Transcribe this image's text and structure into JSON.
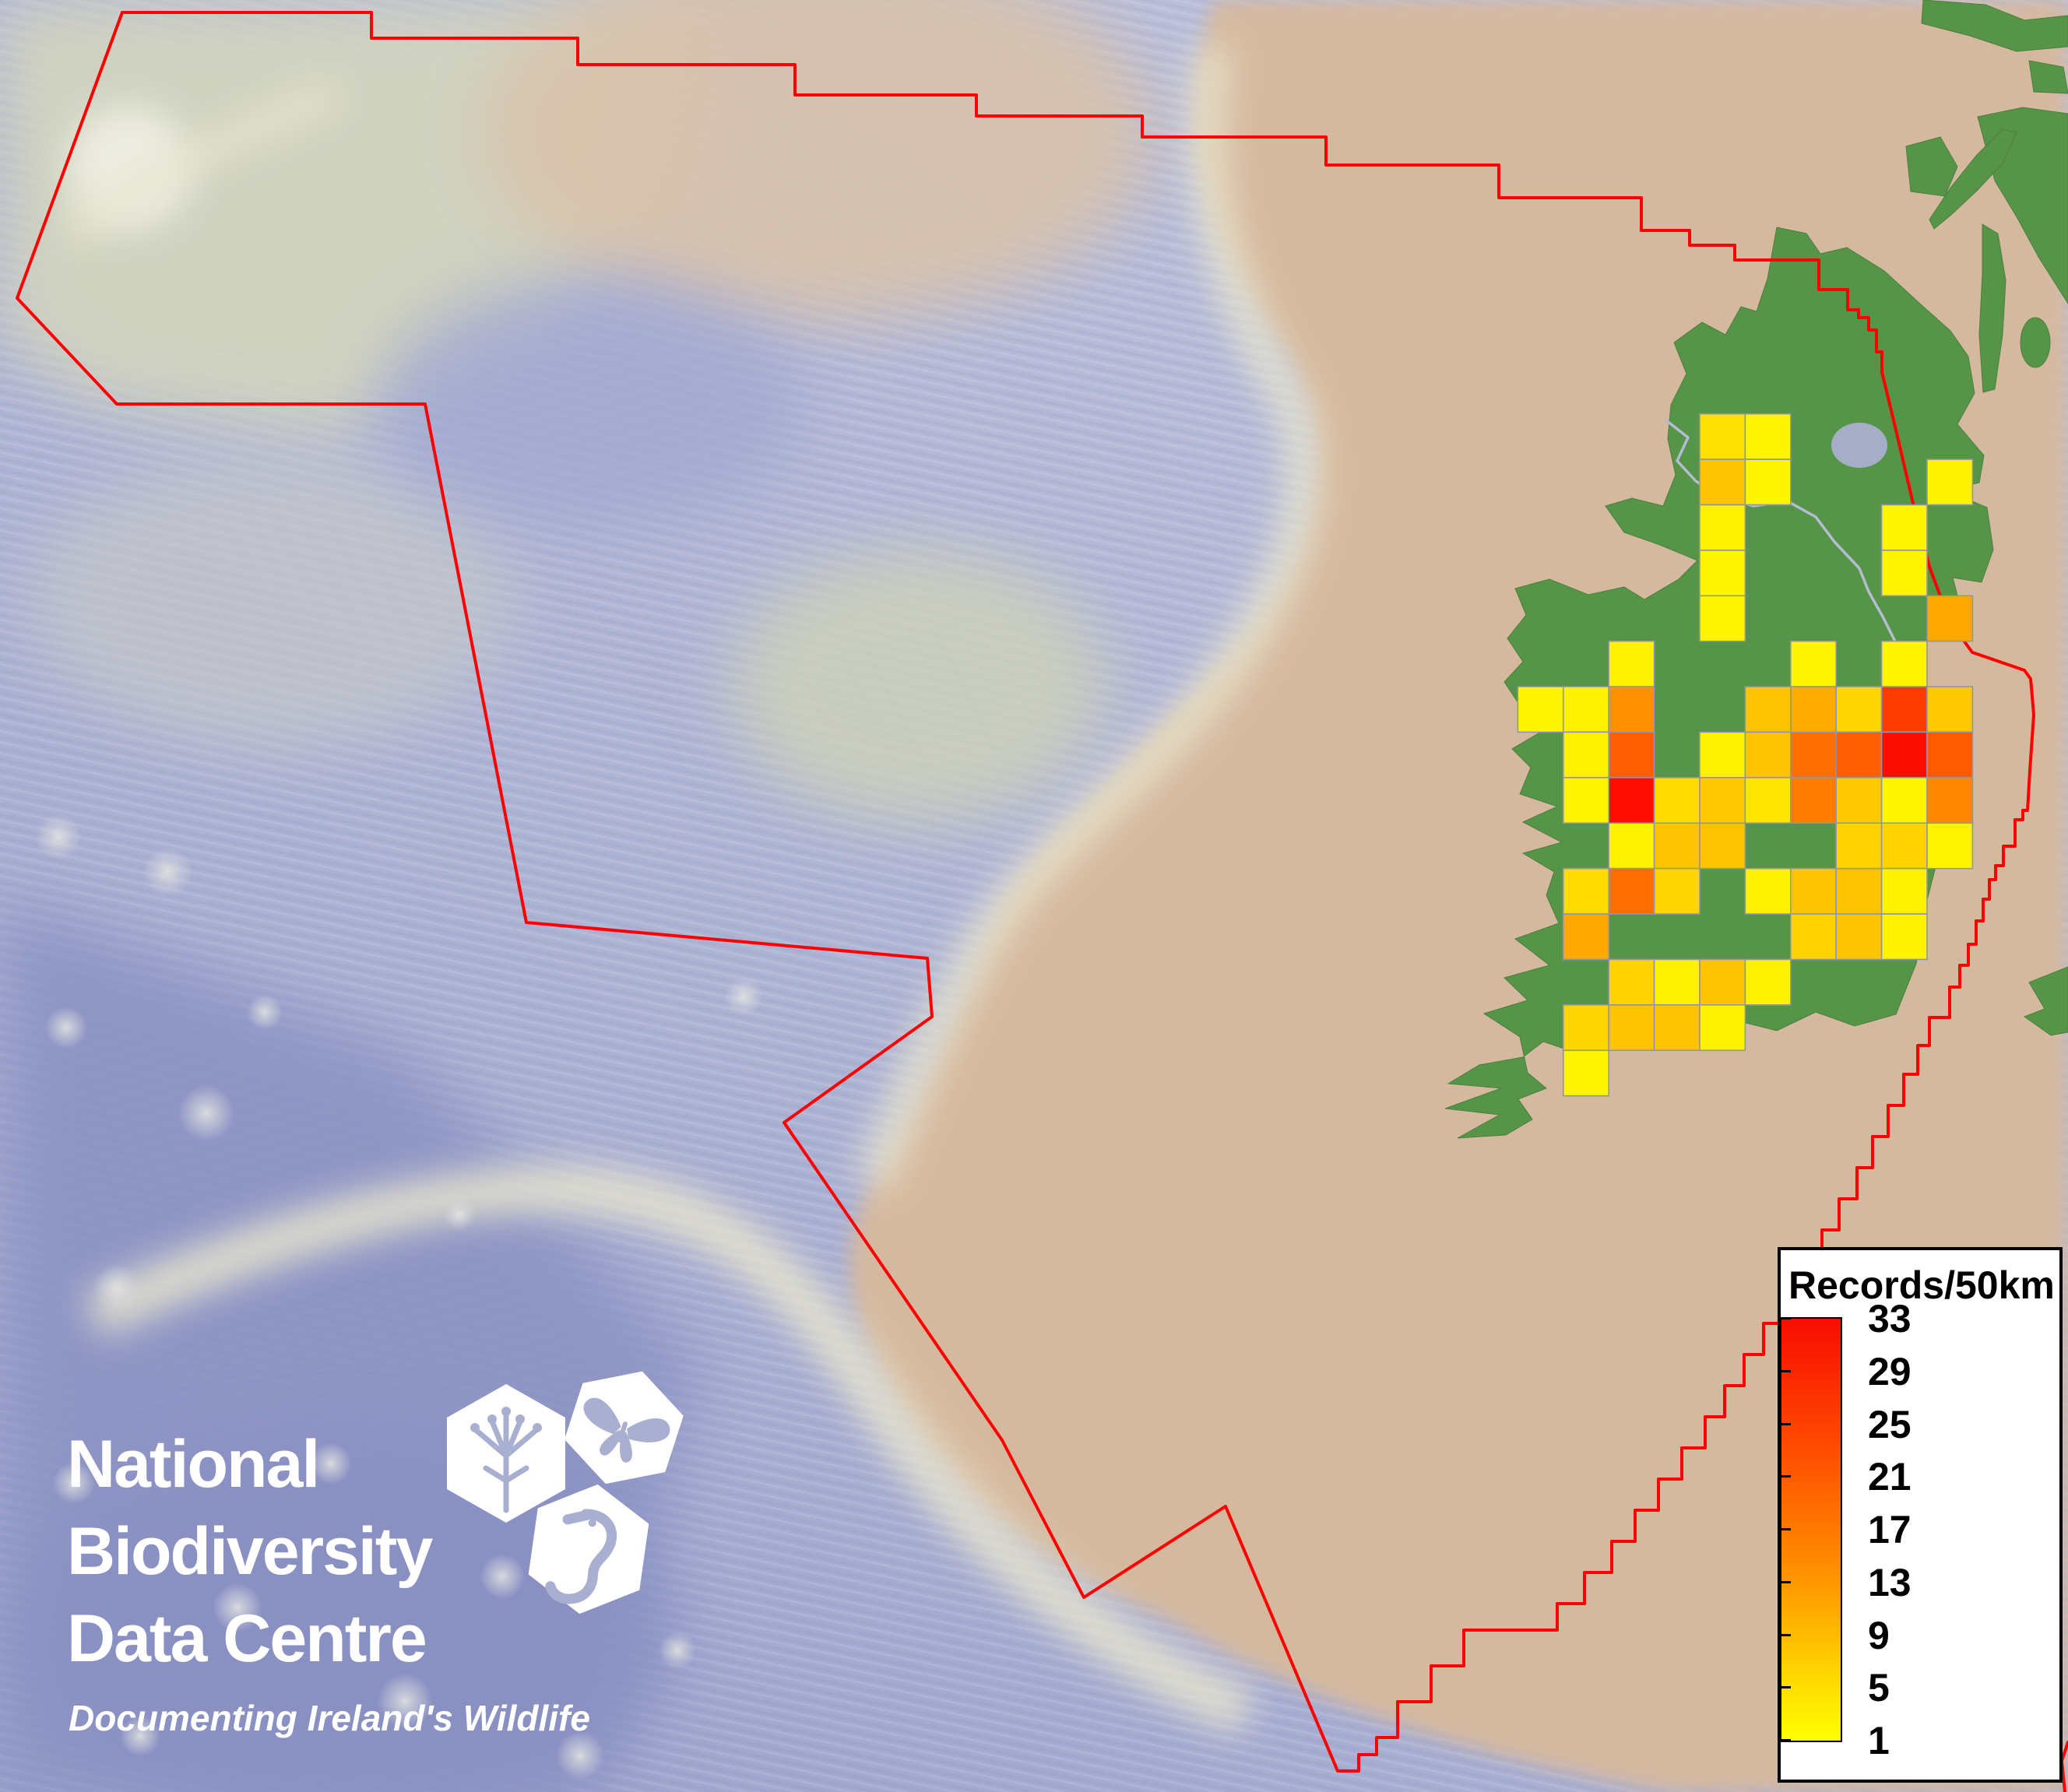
{
  "palette": {
    "boundary_red": "#ff0000",
    "grid_border": "#9195a9",
    "land_green": "#569447",
    "land_stroke": "#4a8040",
    "shelf_tan": "#d5b99f",
    "ocean_blue": "#aeb3d4",
    "deep_blue": "#8d94c4",
    "ni_border_grey": "#b4bcd2",
    "lake_grey": "#a5aec6",
    "legend_bg": "#ffffff",
    "logo_white": "#ffffff"
  },
  "legend": {
    "title": "Records/50km",
    "tick_labels": [
      "33",
      "29",
      "25",
      "21",
      "17",
      "13",
      "9",
      "5",
      "1"
    ],
    "min_value": 1,
    "max_value": 33,
    "gradient_top_to_bottom": [
      "#f80c00",
      "#ff4a00",
      "#ff9000",
      "#ffd800",
      "#ffff00"
    ]
  },
  "logo": {
    "line1": "National",
    "line2": "Biodiversity",
    "line3": "Data Centre",
    "tagline": "Documenting Ireland's Wildlife",
    "icons": [
      "plant-hexagon-icon",
      "butterfly-hexagon-icon",
      "seahorse-hexagon-icon"
    ]
  },
  "map": {
    "boundary": {
      "color": "#ff0000",
      "width": 4,
      "points": [
        [
          157,
          16
        ],
        [
          477,
          16
        ],
        [
          477,
          49
        ],
        [
          742,
          49
        ],
        [
          742,
          83
        ],
        [
          1021,
          83
        ],
        [
          1021,
          122
        ],
        [
          1254,
          122
        ],
        [
          1254,
          149
        ],
        [
          1467,
          149
        ],
        [
          1467,
          176
        ],
        [
          1703,
          176
        ],
        [
          1703,
          212
        ],
        [
          1925,
          212
        ],
        [
          1925,
          254
        ],
        [
          2108,
          254
        ],
        [
          2108,
          296
        ],
        [
          2170,
          296
        ],
        [
          2170,
          315
        ],
        [
          2228,
          315
        ],
        [
          2228,
          334
        ],
        [
          2336,
          334
        ],
        [
          2336,
          372
        ],
        [
          2373,
          372
        ],
        [
          2373,
          398
        ],
        [
          2387,
          398
        ],
        [
          2387,
          408
        ],
        [
          2400,
          408
        ],
        [
          2400,
          424
        ],
        [
          2410,
          424
        ],
        [
          2410,
          452
        ],
        [
          2417,
          452
        ],
        [
          2417,
          478
        ],
        [
          2432,
          540
        ],
        [
          2448,
          608
        ],
        [
          2462,
          668
        ],
        [
          2478,
          728
        ],
        [
          2498,
          782
        ],
        [
          2520,
          820
        ],
        [
          2533,
          838
        ],
        [
          2600,
          861
        ],
        [
          2608,
          872
        ],
        [
          2612,
          918
        ],
        [
          2607,
          990
        ],
        [
          2604,
          1041
        ],
        [
          2598,
          1041
        ],
        [
          2598,
          1053
        ],
        [
          2588,
          1053
        ],
        [
          2588,
          1087
        ],
        [
          2573,
          1087
        ],
        [
          2573,
          1112
        ],
        [
          2563,
          1112
        ],
        [
          2563,
          1130
        ],
        [
          2555,
          1130
        ],
        [
          2555,
          1155
        ],
        [
          2547,
          1155
        ],
        [
          2547,
          1183
        ],
        [
          2538,
          1183
        ],
        [
          2538,
          1213
        ],
        [
          2528,
          1213
        ],
        [
          2528,
          1240
        ],
        [
          2517,
          1240
        ],
        [
          2517,
          1268
        ],
        [
          2504,
          1268
        ],
        [
          2504,
          1307
        ],
        [
          2478,
          1307
        ],
        [
          2478,
          1343
        ],
        [
          2463,
          1343
        ],
        [
          2463,
          1380
        ],
        [
          2445,
          1380
        ],
        [
          2445,
          1420
        ],
        [
          2425,
          1420
        ],
        [
          2425,
          1460
        ],
        [
          2405,
          1460
        ],
        [
          2405,
          1500
        ],
        [
          2385,
          1500
        ],
        [
          2385,
          1540
        ],
        [
          2362,
          1540
        ],
        [
          2362,
          1580
        ],
        [
          2340,
          1580
        ],
        [
          2340,
          1620
        ],
        [
          2315,
          1620
        ],
        [
          2315,
          1660
        ],
        [
          2290,
          1660
        ],
        [
          2290,
          1700
        ],
        [
          2265,
          1700
        ],
        [
          2265,
          1740
        ],
        [
          2240,
          1740
        ],
        [
          2240,
          1780
        ],
        [
          2215,
          1780
        ],
        [
          2215,
          1820
        ],
        [
          2190,
          1820
        ],
        [
          2190,
          1860
        ],
        [
          2160,
          1860
        ],
        [
          2160,
          1900
        ],
        [
          2130,
          1900
        ],
        [
          2130,
          1940
        ],
        [
          2100,
          1940
        ],
        [
          2100,
          1980
        ],
        [
          2070,
          1980
        ],
        [
          2070,
          2020
        ],
        [
          2035,
          2020
        ],
        [
          2035,
          2060
        ],
        [
          2000,
          2060
        ],
        [
          2000,
          2094
        ],
        [
          1880,
          2094
        ],
        [
          1880,
          2140
        ],
        [
          1838,
          2140
        ],
        [
          1838,
          2186
        ],
        [
          1795,
          2186
        ],
        [
          1795,
          2232
        ],
        [
          1768,
          2232
        ],
        [
          1768,
          2254
        ],
        [
          1745,
          2254
        ],
        [
          1745,
          2275
        ],
        [
          1718,
          2275
        ],
        [
          1574,
          1935
        ],
        [
          1392,
          2052
        ],
        [
          1287,
          1850
        ],
        [
          1007,
          1442
        ],
        [
          1197,
          1306
        ],
        [
          1191,
          1231
        ],
        [
          676,
          1185
        ],
        [
          546,
          519
        ],
        [
          150,
          519
        ],
        [
          22,
          383
        ],
        [
          157,
          16
        ]
      ],
      "extra_segment_points": [
        [
          2656,
          2238
        ],
        [
          2648,
          2262
        ],
        [
          2652,
          2302
        ]
      ]
    },
    "ni_border": {
      "color": "#b4bcd2",
      "width": 3.5,
      "points": [
        [
          2140,
          540
        ],
        [
          2168,
          562
        ],
        [
          2154,
          592
        ],
        [
          2178,
          618
        ],
        [
          2210,
          638
        ],
        [
          2252,
          650
        ],
        [
          2296,
          644
        ],
        [
          2332,
          664
        ],
        [
          2356,
          696
        ],
        [
          2388,
          730
        ],
        [
          2400,
          760
        ],
        [
          2418,
          792
        ],
        [
          2440,
          836
        ]
      ]
    },
    "grid": {
      "origin_x": 1949.4,
      "origin_y": 531.7,
      "cell_size": 58.4,
      "border_color": "#9195a9",
      "unit": "records per 50km square",
      "squares": [
        {
          "col": 4,
          "row": 0,
          "value": 4,
          "color": "#ffe100"
        },
        {
          "col": 5,
          "row": 0,
          "value": 1,
          "color": "#fff500"
        },
        {
          "col": 4,
          "row": 1,
          "value": 8,
          "color": "#ffc400"
        },
        {
          "col": 5,
          "row": 1,
          "value": 1,
          "color": "#fff500"
        },
        {
          "col": 9,
          "row": 1,
          "value": 1,
          "color": "#fff200"
        },
        {
          "col": 4,
          "row": 2,
          "value": 1,
          "color": "#fff200"
        },
        {
          "col": 8,
          "row": 2,
          "value": 1,
          "color": "#fff500"
        },
        {
          "col": 4,
          "row": 3,
          "value": 1,
          "color": "#fff500"
        },
        {
          "col": 8,
          "row": 3,
          "value": 1,
          "color": "#fff500"
        },
        {
          "col": 4,
          "row": 4,
          "value": 1,
          "color": "#fff500"
        },
        {
          "col": 9,
          "row": 4,
          "value": 12,
          "color": "#ffa800"
        },
        {
          "col": 2,
          "row": 5,
          "value": 1,
          "color": "#fff200"
        },
        {
          "col": 6,
          "row": 5,
          "value": 1,
          "color": "#fff500"
        },
        {
          "col": 8,
          "row": 5,
          "value": 1,
          "color": "#fff500"
        },
        {
          "col": 0,
          "row": 6,
          "value": 1,
          "color": "#fff500"
        },
        {
          "col": 1,
          "row": 6,
          "value": 1,
          "color": "#fff200"
        },
        {
          "col": 2,
          "row": 6,
          "value": 15,
          "color": "#ff9100"
        },
        {
          "col": 5,
          "row": 6,
          "value": 8,
          "color": "#ffc400"
        },
        {
          "col": 6,
          "row": 6,
          "value": 11,
          "color": "#ffab00"
        },
        {
          "col": 7,
          "row": 6,
          "value": 5,
          "color": "#ffd600"
        },
        {
          "col": 8,
          "row": 6,
          "value": 26,
          "color": "#ff3c00"
        },
        {
          "col": 9,
          "row": 6,
          "value": 7,
          "color": "#ffc900"
        },
        {
          "col": 1,
          "row": 7,
          "value": 1,
          "color": "#fff200"
        },
        {
          "col": 2,
          "row": 7,
          "value": 21,
          "color": "#ff5f00"
        },
        {
          "col": 4,
          "row": 7,
          "value": 1,
          "color": "#fff200"
        },
        {
          "col": 5,
          "row": 7,
          "value": 8,
          "color": "#ffc400"
        },
        {
          "col": 6,
          "row": 7,
          "value": 19,
          "color": "#ff6f00"
        },
        {
          "col": 7,
          "row": 7,
          "value": 21,
          "color": "#ff5f00"
        },
        {
          "col": 8,
          "row": 7,
          "value": 33,
          "color": "#fb0d00"
        },
        {
          "col": 9,
          "row": 7,
          "value": 22,
          "color": "#ff5a00"
        },
        {
          "col": 1,
          "row": 8,
          "value": 1,
          "color": "#fff500"
        },
        {
          "col": 2,
          "row": 8,
          "value": 32,
          "color": "#ff0f00"
        },
        {
          "col": 3,
          "row": 8,
          "value": 5,
          "color": "#ffdc00"
        },
        {
          "col": 4,
          "row": 8,
          "value": 7,
          "color": "#ffc900"
        },
        {
          "col": 5,
          "row": 8,
          "value": 3,
          "color": "#ffe600"
        },
        {
          "col": 6,
          "row": 8,
          "value": 17,
          "color": "#ff7b00"
        },
        {
          "col": 7,
          "row": 8,
          "value": 7,
          "color": "#ffc900"
        },
        {
          "col": 8,
          "row": 8,
          "value": 1,
          "color": "#fff500"
        },
        {
          "col": 9,
          "row": 8,
          "value": 16,
          "color": "#ff8800"
        },
        {
          "col": 2,
          "row": 9,
          "value": 1,
          "color": "#fff200"
        },
        {
          "col": 3,
          "row": 9,
          "value": 8,
          "color": "#ffc400"
        },
        {
          "col": 4,
          "row": 9,
          "value": 8,
          "color": "#ffc400"
        },
        {
          "col": 7,
          "row": 9,
          "value": 6,
          "color": "#ffd200"
        },
        {
          "col": 8,
          "row": 9,
          "value": 6,
          "color": "#ffd200"
        },
        {
          "col": 9,
          "row": 9,
          "value": 1,
          "color": "#fff500"
        },
        {
          "col": 1,
          "row": 10,
          "value": 5,
          "color": "#ffdc00"
        },
        {
          "col": 2,
          "row": 10,
          "value": 19,
          "color": "#ff6f00"
        },
        {
          "col": 3,
          "row": 10,
          "value": 5,
          "color": "#ffd600"
        },
        {
          "col": 5,
          "row": 10,
          "value": 1,
          "color": "#fff200"
        },
        {
          "col": 6,
          "row": 10,
          "value": 8,
          "color": "#ffc400"
        },
        {
          "col": 7,
          "row": 10,
          "value": 8,
          "color": "#ffc400"
        },
        {
          "col": 8,
          "row": 10,
          "value": 1,
          "color": "#fff200"
        },
        {
          "col": 1,
          "row": 11,
          "value": 12,
          "color": "#ffa800"
        },
        {
          "col": 6,
          "row": 11,
          "value": 6,
          "color": "#ffd200"
        },
        {
          "col": 7,
          "row": 11,
          "value": 8,
          "color": "#ffc400"
        },
        {
          "col": 8,
          "row": 11,
          "value": 1,
          "color": "#fff200"
        },
        {
          "col": 2,
          "row": 12,
          "value": 6,
          "color": "#ffd200"
        },
        {
          "col": 3,
          "row": 12,
          "value": 1,
          "color": "#fff200"
        },
        {
          "col": 4,
          "row": 12,
          "value": 8,
          "color": "#ffc400"
        },
        {
          "col": 5,
          "row": 12,
          "value": 1,
          "color": "#fff200"
        },
        {
          "col": 1,
          "row": 13,
          "value": 5,
          "color": "#ffd600"
        },
        {
          "col": 2,
          "row": 13,
          "value": 8,
          "color": "#ffc400"
        },
        {
          "col": 3,
          "row": 13,
          "value": 8,
          "color": "#ffc400"
        },
        {
          "col": 4,
          "row": 13,
          "value": 1,
          "color": "#fff200"
        },
        {
          "col": 1,
          "row": 14,
          "value": 1,
          "color": "#fff500"
        }
      ]
    }
  }
}
